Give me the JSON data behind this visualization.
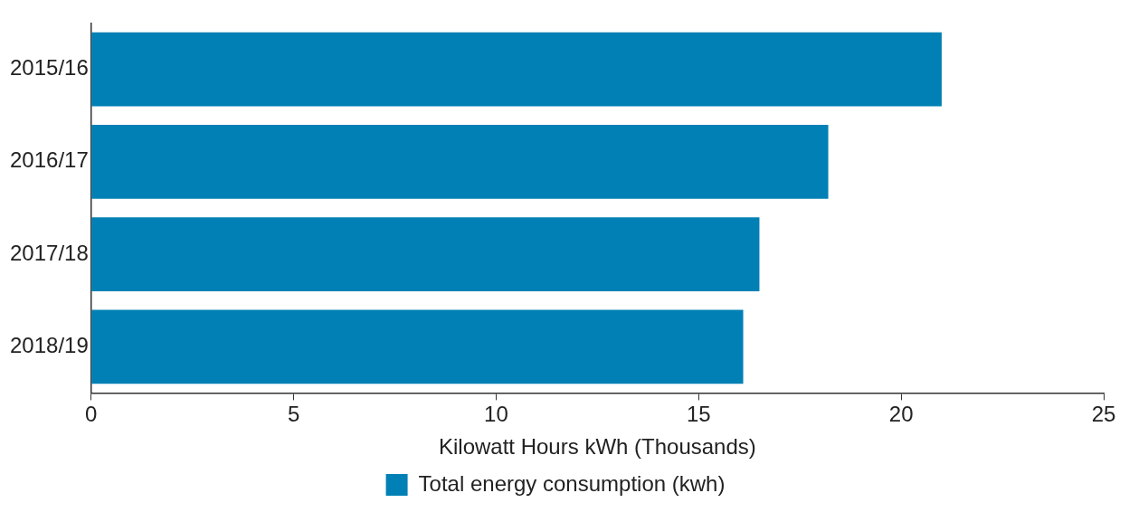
{
  "chart_data": {
    "type": "bar",
    "orientation": "horizontal",
    "categories": [
      "2015/16",
      "2016/17",
      "2017/18",
      "2018/19"
    ],
    "series": [
      {
        "name": "Total energy consumption (kwh)",
        "color": "#0080b4",
        "values": [
          21.0,
          18.2,
          16.5,
          16.1
        ]
      }
    ],
    "xlabel": "Kilowatt Hours kWh (Thousands)",
    "xlim": [
      0,
      25
    ],
    "xticks": [
      0,
      5,
      10,
      15,
      20,
      25
    ],
    "grid": false,
    "legend": "bottom"
  }
}
